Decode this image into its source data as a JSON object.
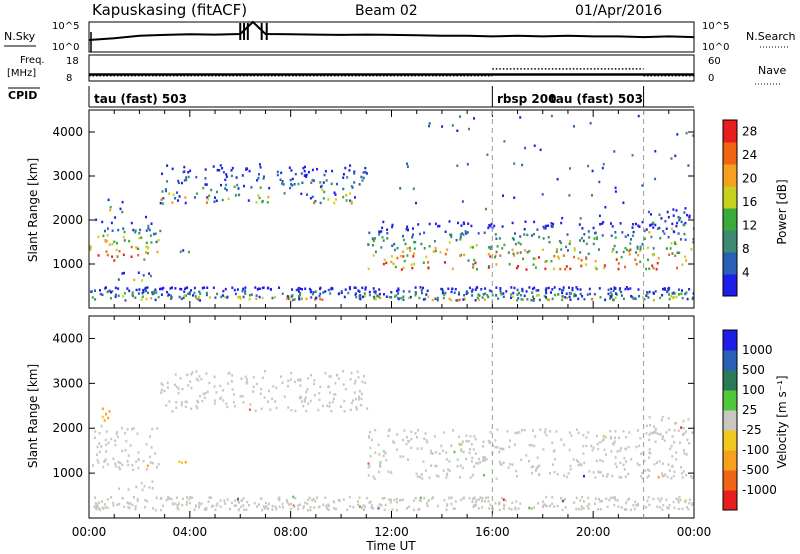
{
  "header": {
    "station": "Kapuskasing (fitACF)",
    "beam": "Beam 02",
    "date": "01/Apr/2016"
  },
  "chart_data": [
    {
      "type": "line",
      "panel": "noise",
      "left_label": "N.Sky",
      "right_label": "N.Search",
      "ylim": [
        1,
        100000
      ],
      "ytick_labels_left": [
        "10^5",
        "10^0"
      ],
      "ytick_labels_right": [
        "10^5",
        "10^0"
      ],
      "log_scale": true,
      "x": [
        "00:00",
        "01:00",
        "02:00",
        "03:00",
        "04:00",
        "05:00",
        "06:00",
        "06:30",
        "07:00",
        "08:00",
        "09:00",
        "10:00",
        "11:00",
        "12:00",
        "13:00",
        "14:00",
        "15:00",
        "16:00",
        "17:00",
        "18:00",
        "19:00",
        "20:00",
        "21:00",
        "22:00",
        "23:00",
        "24:00"
      ],
      "sky_values": [
        100,
        200,
        500,
        700,
        900,
        800,
        1000,
        100000,
        1000,
        900,
        800,
        700,
        800,
        700,
        600,
        500,
        500,
        400,
        500,
        400,
        500,
        400,
        400,
        300,
        400,
        300
      ]
    },
    {
      "type": "line",
      "panel": "frequency",
      "left_label": "Freq. [MHz]",
      "right_label": "Nave",
      "ylim_left": [
        8,
        18
      ],
      "ylim_right": [
        0,
        60
      ],
      "ytick_labels_left": [
        "18",
        "8"
      ],
      "ytick_labels_right": [
        "60",
        "0"
      ],
      "freq_mhz": 10.5,
      "nave_segments": [
        {
          "start": "00:00",
          "end": "16:00",
          "nave": 12
        },
        {
          "start": "16:00",
          "end": "22:00",
          "nave": 28
        },
        {
          "start": "22:00",
          "end": "24:00",
          "nave": 12
        }
      ]
    },
    {
      "type": "table",
      "panel": "cpid",
      "label": "CPID",
      "segments": [
        {
          "start": "00:00",
          "end": "16:00",
          "name": "tau (fast) 503"
        },
        {
          "start": "16:00",
          "end": "18:00",
          "name": "rbsp 200"
        },
        {
          "start": "18:00",
          "end": "22:00",
          "name": "tau (fast) 503"
        }
      ]
    },
    {
      "type": "heatmap",
      "panel": "power",
      "ylabel": "Slant Range [km]",
      "xlabel": "",
      "ylim": [
        0,
        4500
      ],
      "yticks": [
        1000,
        2000,
        3000,
        4000
      ],
      "colorbar_label": "Power [dB]",
      "colorbar_ticks": [
        4,
        8,
        12,
        16,
        20,
        24,
        28
      ],
      "colorbar_range": [
        0,
        30
      ],
      "colors": [
        "#1e1ee6",
        "#2a5fb8",
        "#3c8a70",
        "#3aaa3a",
        "#c8d21e",
        "#f5a01e",
        "#f06414",
        "#e61e1e"
      ],
      "bands": [
        {
          "t0": 0.0,
          "t1": 2.8,
          "r0": 1100,
          "r1": 2100
        },
        {
          "t0": 0.5,
          "t1": 1.3,
          "r0": 2200,
          "r1": 2500
        },
        {
          "t0": 0.8,
          "t1": 2.5,
          "r0": 650,
          "r1": 850
        },
        {
          "t0": 2.8,
          "t1": 11.0,
          "r0": 2400,
          "r1": 3300
        },
        {
          "t0": 3.5,
          "t1": 4.0,
          "r0": 1200,
          "r1": 1450
        },
        {
          "t0": 11.0,
          "t1": 24.0,
          "r0": 900,
          "r1": 2000
        },
        {
          "t0": 22.0,
          "t1": 24.0,
          "r0": 1700,
          "r1": 2300
        },
        {
          "t0": 0.0,
          "t1": 24.0,
          "r0": 200,
          "r1": 500
        }
      ]
    },
    {
      "type": "heatmap",
      "panel": "velocity",
      "ylabel": "Slant Range [km]",
      "xlabel": "Time UT",
      "ylim": [
        0,
        4500
      ],
      "yticks": [
        1000,
        2000,
        3000,
        4000
      ],
      "colorbar_label": "Velocity [m s⁻¹]",
      "colorbar_ticks": [
        "-1000",
        "-500",
        "-100",
        "-25",
        "25",
        "100",
        "500",
        "1000"
      ],
      "colors": [
        "#e61e1e",
        "#f06414",
        "#f5a01e",
        "#f0c81e",
        "#c8c8c0",
        "#50c83c",
        "#2a7a5a",
        "#2a5fb8",
        "#1e1ee6"
      ],
      "xtick_labels": [
        "00:00",
        "04:00",
        "08:00",
        "12:00",
        "16:00",
        "20:00",
        "00:00"
      ]
    }
  ]
}
